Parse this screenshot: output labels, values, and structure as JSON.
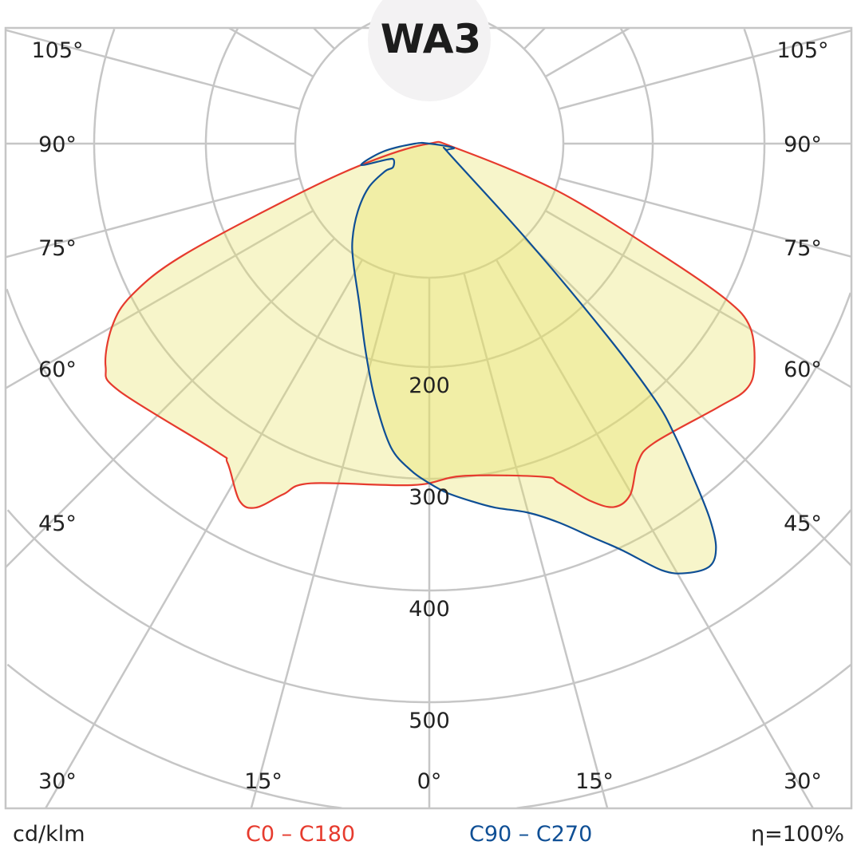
{
  "chart_data": {
    "type": "polar",
    "title": "WA3",
    "unit_label": "cd/klm",
    "efficiency_label": "η=100%",
    "radial_axis": {
      "ticks": [
        200,
        300,
        400,
        500,
        600
      ],
      "tick_labels": [
        "200",
        "300",
        "400",
        "500"
      ]
    },
    "angle_axis": {
      "step_deg": 15,
      "side_labels": [
        {
          "angle": 105,
          "text": "105°"
        },
        {
          "angle": 90,
          "text": "90°"
        },
        {
          "angle": 75,
          "text": "75°"
        },
        {
          "angle": 60,
          "text": "60°"
        },
        {
          "angle": 45,
          "text": "45°"
        }
      ],
      "bottom_labels": [
        {
          "angle": -30,
          "text": "30°"
        },
        {
          "angle": -15,
          "text": "15°"
        },
        {
          "angle": 0,
          "text": "0°"
        },
        {
          "angle": 15,
          "text": "15°"
        },
        {
          "angle": 30,
          "text": "30°"
        }
      ]
    },
    "grid": true,
    "legend_position": "bottom",
    "series": [
      {
        "name": "C0 – C180",
        "color": "#e63b2e",
        "points": [
          [
            -90,
            0
          ],
          [
            -73.6,
            51
          ],
          [
            -69.2,
            121
          ],
          [
            -65.6,
            242
          ],
          [
            -63,
            299
          ],
          [
            -60,
            328
          ],
          [
            -55.4,
            352
          ],
          [
            -51.4,
            355
          ],
          [
            -34.8,
            335
          ],
          [
            -32.3,
            338
          ],
          [
            -28,
            362
          ],
          [
            -25.5,
            361
          ],
          [
            -22.6,
            340
          ],
          [
            -19.2,
            322
          ],
          [
            -2.7,
            306
          ],
          [
            5.75,
            299
          ],
          [
            18.8,
            315
          ],
          [
            20.9,
            325
          ],
          [
            24.3,
            351
          ],
          [
            27,
            365
          ],
          [
            29.8,
            362
          ],
          [
            33.2,
            341
          ],
          [
            36.9,
            335
          ],
          [
            47.6,
            350
          ],
          [
            52.2,
            359
          ],
          [
            55.5,
            353
          ],
          [
            60.2,
            331
          ],
          [
            62.3,
            300
          ],
          [
            64.4,
            231
          ],
          [
            69.7,
            123
          ],
          [
            81,
            23
          ]
        ]
      },
      {
        "name": "C90 – C270",
        "color": "#0f4f95",
        "points": [
          [
            90,
            0
          ],
          [
            80.5,
            22
          ],
          [
            70,
            17
          ],
          [
            61,
            22
          ],
          [
            45.5,
            122
          ],
          [
            42.8,
            233
          ],
          [
            41.4,
            305
          ],
          [
            40.1,
            341
          ],
          [
            38.3,
            382
          ],
          [
            36.8,
            419
          ],
          [
            35.4,
            443
          ],
          [
            33.6,
            454
          ],
          [
            30.9,
            448
          ],
          [
            28.6,
            435
          ],
          [
            25.4,
            403
          ],
          [
            22.3,
            380
          ],
          [
            18.8,
            358
          ],
          [
            15,
            342
          ],
          [
            10.2,
            331
          ],
          [
            6.6,
            322
          ],
          [
            2.9,
            313
          ],
          [
            0,
            304
          ],
          [
            -3.2,
            293
          ],
          [
            -7.2,
            274
          ],
          [
            -12,
            234
          ],
          [
            -17.1,
            194
          ],
          [
            -23.7,
            156
          ],
          [
            -32.3,
            127
          ],
          [
            -38.7,
            110
          ],
          [
            -46.6,
            88
          ],
          [
            -54.1,
            67
          ],
          [
            -58,
            47
          ],
          [
            -56.9,
            39
          ],
          [
            -65.6,
            35
          ],
          [
            -69.3,
            40
          ],
          [
            -72.6,
            64
          ],
          [
            -80.2,
            42
          ],
          [
            -90,
            13
          ]
        ]
      }
    ]
  }
}
